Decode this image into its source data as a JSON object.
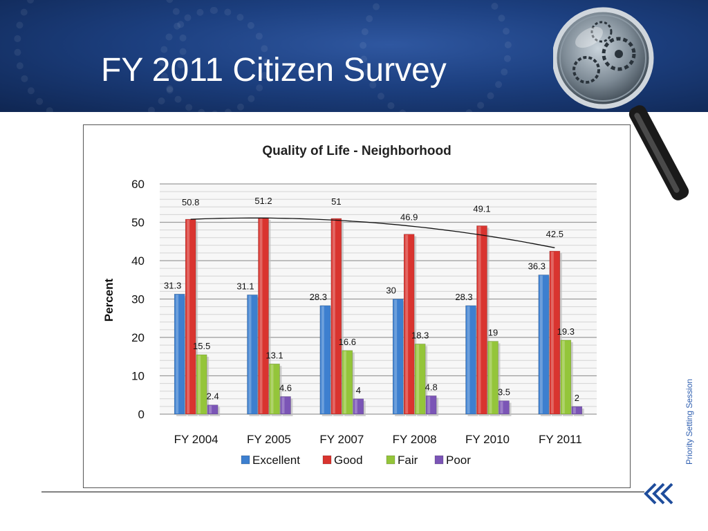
{
  "slide": {
    "title": "FY 2011 Citizen Survey",
    "side_label": "Priority Setting Session",
    "colors": {
      "header_dark": "#0f2652",
      "header_light": "#2f57a0",
      "side_label": "#2f5fb0"
    }
  },
  "chart_data": {
    "type": "bar",
    "title": "Quality of Life - Neighborhood",
    "xlabel": "",
    "ylabel": "Percent",
    "ylim": [
      0,
      60
    ],
    "yticks": [
      0,
      10,
      20,
      30,
      40,
      50,
      60
    ],
    "categories": [
      "FY 2004",
      "FY 2005",
      "FY 2007",
      "FY 2008",
      "FY 2010",
      "FY 2011"
    ],
    "series": [
      {
        "name": "Excellent",
        "color": "#3d7fcf",
        "values": [
          31.3,
          31.1,
          28.3,
          30,
          28.3,
          36.3
        ],
        "labels": [
          "31.3",
          "31.1",
          "28.3",
          "30",
          "28.3",
          "36.3"
        ]
      },
      {
        "name": "Good",
        "color": "#d9342f",
        "values": [
          50.8,
          51.2,
          51,
          46.9,
          49.1,
          42.5
        ],
        "labels": [
          "50.8",
          "51.2",
          "51",
          "46.9",
          "49.1",
          "42.5"
        ]
      },
      {
        "name": "Fair",
        "color": "#94c53a",
        "values": [
          15.5,
          13.1,
          16.6,
          18.3,
          19,
          19.3
        ],
        "labels": [
          "15.5",
          "13.1",
          "16.6",
          "18.3",
          "19",
          "19.3"
        ]
      },
      {
        "name": "Poor",
        "color": "#7b55b6",
        "values": [
          2.4,
          4.6,
          4,
          4.8,
          3.5,
          2
        ],
        "labels": [
          "2.4",
          "4.6",
          "4",
          "4.8",
          "3.5",
          "2"
        ]
      }
    ],
    "trendline": {
      "series": "Good",
      "type": "polynomial"
    },
    "grid": true,
    "legend": "bottom"
  }
}
